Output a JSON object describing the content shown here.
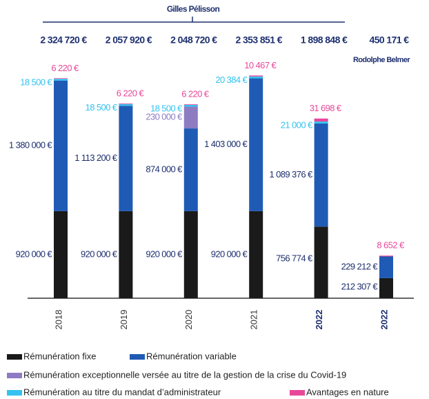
{
  "chart_data": {
    "type": "stacked_bar",
    "annotations": [
      "Gilles Pélisson",
      "Rodolphe Belmer"
    ],
    "categories": [
      "2018",
      "2019",
      "2020",
      "2021",
      "2022",
      "2022"
    ],
    "category_bold": [
      false,
      false,
      false,
      false,
      true,
      true
    ],
    "totals": {
      "values": [
        2324720,
        2057920,
        2048720,
        2353851,
        1898848,
        450171
      ],
      "value_labels": [
        "2 324 720 €",
        "2 057 920 €",
        "2 048 720 €",
        "2 353 851 €",
        "1 898 848 €",
        "450 171 €"
      ]
    },
    "ylim": [
      0,
      2400000
    ],
    "series": [
      {
        "name": "Rémunération fixe",
        "color": "#1a1a1a",
        "label_color": "#1d2f6f",
        "values": [
          920000,
          920000,
          920000,
          920000,
          756774,
          212307
        ],
        "value_labels": [
          "920 000 €",
          "920 000 €",
          "920 000 €",
          "920 000 €",
          "756 774 €",
          "212 307 €"
        ]
      },
      {
        "name": "Rémunération variable",
        "color": "#1f5bb5",
        "label_color": "#1d2f6f",
        "values": [
          1380000,
          1113200,
          874000,
          1403000,
          1089376,
          229212
        ],
        "value_labels": [
          "1 380 000 €",
          "1 113 200 €",
          "874 000 €",
          "1 403 000 €",
          "1 089 376 €",
          "229 212 €"
        ]
      },
      {
        "name": "Rémunération exceptionnelle versée au titre de la gestion de la crise du Covid-19",
        "color": "#8e7cc3",
        "label_color": "#8e7cc3",
        "values": [
          null,
          null,
          230000,
          null,
          null,
          null
        ],
        "value_labels": [
          null,
          null,
          "230 000 €",
          null,
          null,
          null
        ]
      },
      {
        "name": "Rémunération au titre du mandat d’administrateur",
        "color": "#33c3f0",
        "label_color": "#33c3f0",
        "values": [
          18500,
          18500,
          18500,
          20384,
          21000,
          null
        ],
        "value_labels": [
          "18 500 €",
          "18 500 €",
          "18 500 €",
          "20 384 €",
          "21 000 €",
          null
        ]
      },
      {
        "name": "Avantages en nature",
        "color": "#e8489a",
        "label_color": "#e8489a",
        "values": [
          6220,
          6220,
          6220,
          10467,
          31698,
          8652
        ],
        "value_labels": [
          "6 220 €",
          "6 220 €",
          "6 220 €",
          "10 467 €",
          "31 698 €",
          "8 652 €"
        ]
      }
    ]
  }
}
